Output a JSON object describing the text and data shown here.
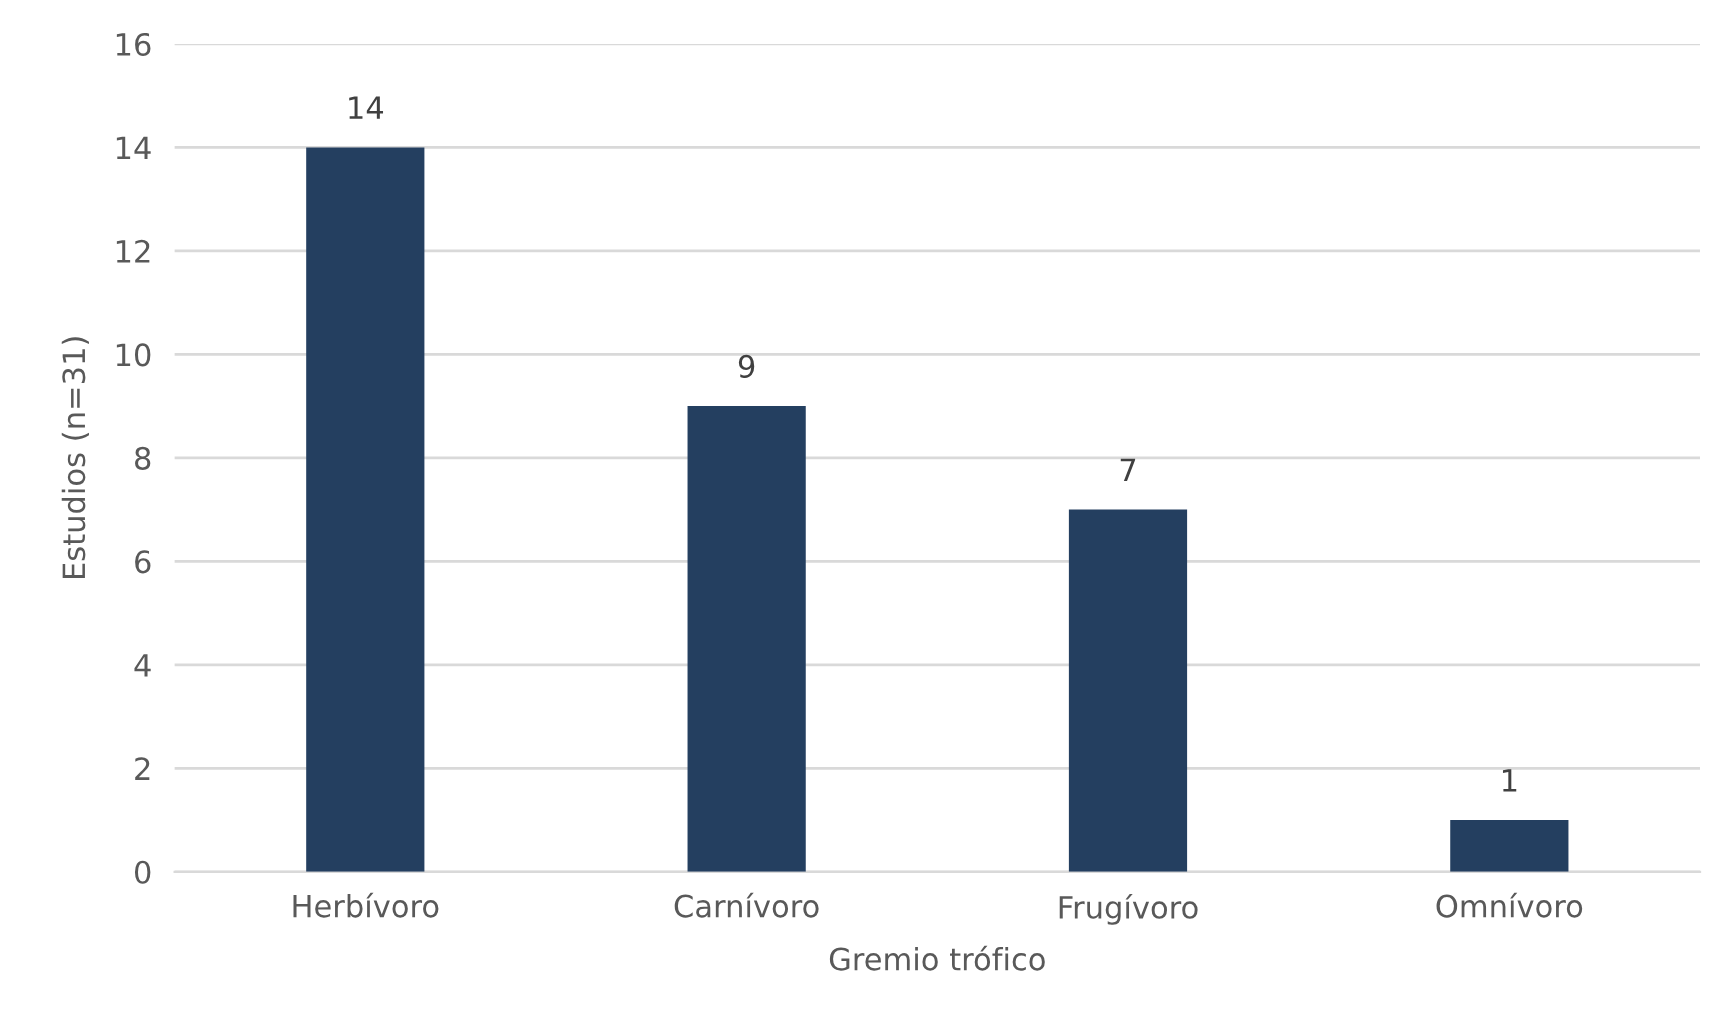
{
  "chart_data": {
    "type": "bar",
    "xlabel": "Gremio trófico",
    "ylabel": "Estudios (n=31)",
    "categories": [
      "Herbívoro",
      "Carnívoro",
      "Frugívoro",
      "Omnívoro"
    ],
    "values": [
      14,
      9,
      7,
      1
    ],
    "color": "#243f60",
    "ylim": [
      0,
      16
    ],
    "yticks": [
      0,
      2,
      4,
      6,
      8,
      10,
      12,
      14,
      16
    ],
    "grid": "y",
    "data_labels": true
  }
}
